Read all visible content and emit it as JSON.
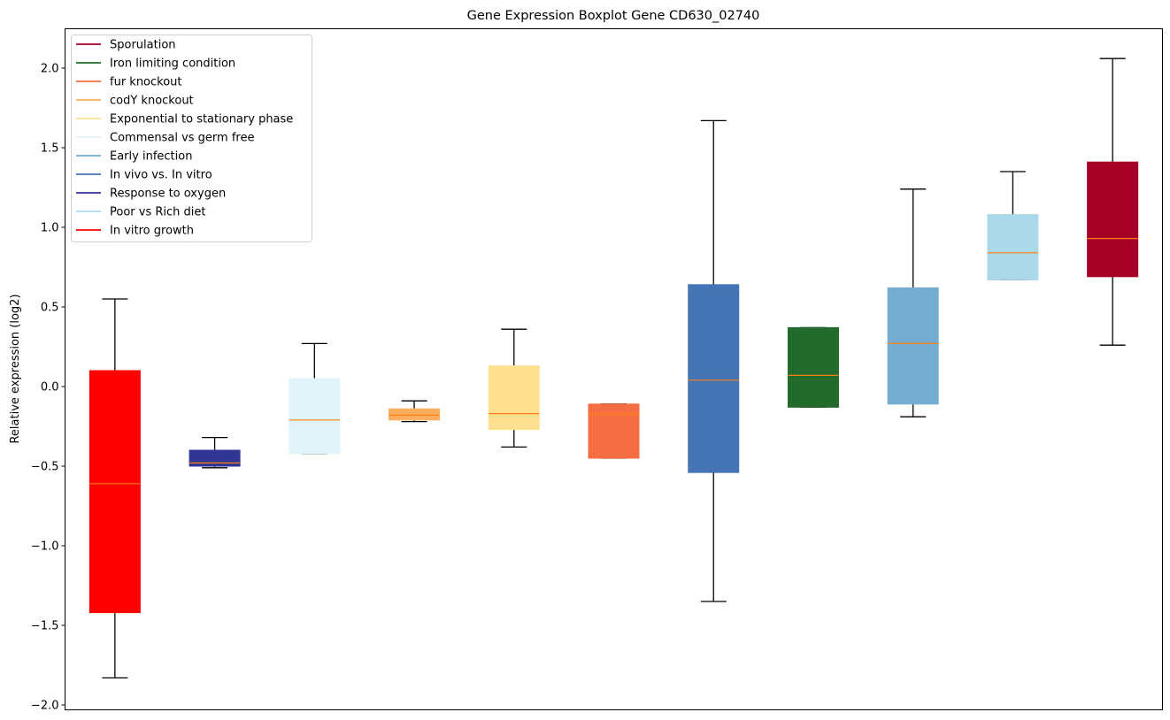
{
  "chart_data": {
    "type": "boxplot",
    "title": "Gene Expression Boxplot Gene CD630_02740",
    "xlabel": "",
    "ylabel": "Relative expression (log2)",
    "ylim": [
      -2.03,
      2.25
    ],
    "yticks": [
      2.0,
      1.5,
      1.0,
      0.5,
      0.0,
      -0.5,
      -1.0,
      -1.5,
      -2.0
    ],
    "ytick_labels": [
      "2.0",
      "1.5",
      "1.0",
      "0.5",
      "0.0",
      "−0.5",
      "−1.0",
      "−1.5",
      "−2.0"
    ],
    "grid": false,
    "legend_position": "top-left",
    "median_color": "#ff7f0e",
    "whisker_color": "#000000",
    "legend": [
      {
        "label": "Sporulation",
        "color": "#a50026"
      },
      {
        "label": "Iron limiting condition",
        "color": "#236b2c"
      },
      {
        "label": "fur knockout",
        "color": "#f46d43"
      },
      {
        "label": "codY knockout",
        "color": "#fdae61"
      },
      {
        "label": "Exponential to stationary phase",
        "color": "#fee090"
      },
      {
        "label": "Commensal vs germ free",
        "color": "#e0f3f8"
      },
      {
        "label": "Early infection",
        "color": "#74add1"
      },
      {
        "label": "In vivo vs. In vitro",
        "color": "#4575b4"
      },
      {
        "label": "Response to oxygen",
        "color": "#313695"
      },
      {
        "label": "Poor vs Rich diet",
        "color": "#abd9e9"
      },
      {
        "label": "In vitro growth",
        "color": "#ff0000"
      }
    ],
    "series": [
      {
        "name": "In vitro growth",
        "color": "#ff0000",
        "whislo": -1.83,
        "q1": -1.42,
        "med": -0.61,
        "q3": 0.1,
        "whishi": 0.55
      },
      {
        "name": "Response to oxygen",
        "color": "#313695",
        "whislo": -0.51,
        "q1": -0.5,
        "med": -0.48,
        "q3": -0.4,
        "whishi": -0.32
      },
      {
        "name": "Commensal vs germ free",
        "color": "#e0f3f8",
        "whislo": -0.42,
        "q1": -0.42,
        "med": -0.21,
        "q3": 0.05,
        "whishi": 0.27
      },
      {
        "name": "codY knockout",
        "color": "#fdae61",
        "whislo": -0.22,
        "q1": -0.21,
        "med": -0.18,
        "q3": -0.14,
        "whishi": -0.09
      },
      {
        "name": "Exponential to stationary phase",
        "color": "#fee090",
        "whislo": -0.38,
        "q1": -0.27,
        "med": -0.17,
        "q3": 0.13,
        "whishi": 0.36
      },
      {
        "name": "fur knockout",
        "color": "#f46d43",
        "whislo": -0.45,
        "q1": -0.45,
        "med": -0.17,
        "q3": -0.11,
        "whishi": -0.11
      },
      {
        "name": "In vivo vs. In vitro",
        "color": "#4575b4",
        "whislo": -1.35,
        "q1": -0.54,
        "med": 0.04,
        "q3": 0.64,
        "whishi": 1.67
      },
      {
        "name": "Iron limiting condition",
        "color": "#236b2c",
        "whislo": -0.13,
        "q1": -0.13,
        "med": 0.07,
        "q3": 0.37,
        "whishi": 0.37
      },
      {
        "name": "Early infection",
        "color": "#74add1",
        "whislo": -0.19,
        "q1": -0.11,
        "med": 0.27,
        "q3": 0.62,
        "whishi": 1.24
      },
      {
        "name": "Poor vs Rich diet",
        "color": "#abd9e9",
        "whislo": 0.67,
        "q1": 0.67,
        "med": 0.84,
        "q3": 1.08,
        "whishi": 1.35
      },
      {
        "name": "Sporulation",
        "color": "#a50026",
        "whislo": 0.26,
        "q1": 0.69,
        "med": 0.93,
        "q3": 1.41,
        "whishi": 2.06
      }
    ]
  }
}
